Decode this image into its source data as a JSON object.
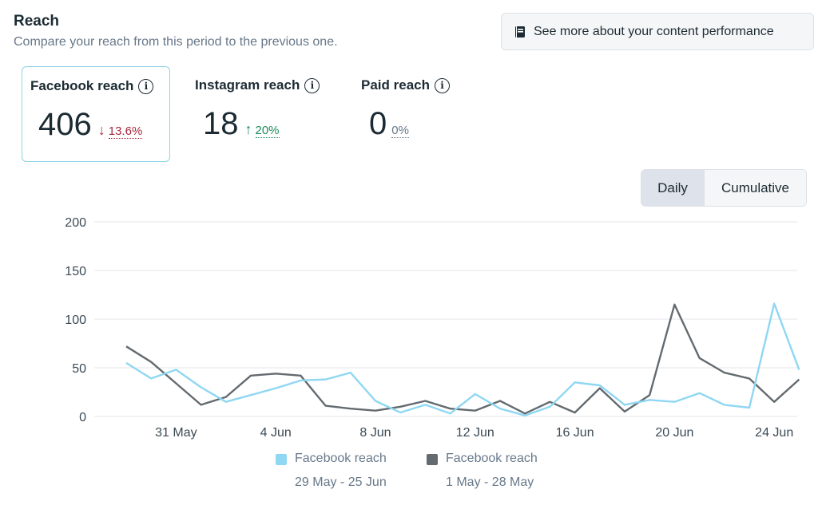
{
  "header": {
    "title": "Reach",
    "subtitle": "Compare your reach from this period to the previous one."
  },
  "perf_button": {
    "label": "See more about your content performance",
    "icon": "book-icon"
  },
  "metrics": [
    {
      "title": "Facebook reach",
      "value": "406",
      "direction": "down",
      "arrow": "↓",
      "change": "13.6%",
      "selected": true
    },
    {
      "title": "Instagram reach",
      "value": "18",
      "direction": "up",
      "arrow": "↑",
      "change": "20%",
      "selected": false
    },
    {
      "title": "Paid reach",
      "value": "0",
      "direction": "neutral",
      "arrow": "",
      "change": "0%",
      "selected": false
    }
  ],
  "toggle": {
    "options": [
      "Daily",
      "Cumulative"
    ],
    "active": "Daily"
  },
  "colors": {
    "current": "#8fd7f2",
    "previous": "#636b70",
    "grid": "#e4e6eb",
    "axis_text": "#3b4a54"
  },
  "chart_data": {
    "type": "line",
    "ylim": [
      0,
      200
    ],
    "y_ticks": [
      0,
      50,
      100,
      150,
      200
    ],
    "x_tick_labels": [
      {
        "day_index": 2,
        "label": "31 May"
      },
      {
        "day_index": 6,
        "label": "4 Jun"
      },
      {
        "day_index": 10,
        "label": "8 Jun"
      },
      {
        "day_index": 14,
        "label": "12 Jun"
      },
      {
        "day_index": 18,
        "label": "16 Jun"
      },
      {
        "day_index": 22,
        "label": "20 Jun"
      },
      {
        "day_index": 26,
        "label": "24 Jun"
      }
    ],
    "grid": true,
    "legend_position": "bottom",
    "series": [
      {
        "name": "Facebook reach",
        "period": "29 May - 25 Jun",
        "color": "#8fd7f2",
        "values": [
          55,
          39,
          48,
          30,
          15,
          22,
          29,
          37,
          38,
          45,
          16,
          4,
          12,
          3,
          23,
          8,
          1,
          10,
          35,
          32,
          12,
          17,
          15,
          24,
          12,
          9,
          116,
          48
        ]
      },
      {
        "name": "Facebook reach",
        "period": "1 May - 28 May",
        "color": "#636b70",
        "values": [
          72,
          56,
          34,
          12,
          20,
          42,
          44,
          42,
          11,
          8,
          6,
          10,
          16,
          8,
          6,
          16,
          3,
          15,
          4,
          29,
          5,
          22,
          115,
          60,
          45,
          39,
          15,
          38
        ]
      }
    ]
  }
}
